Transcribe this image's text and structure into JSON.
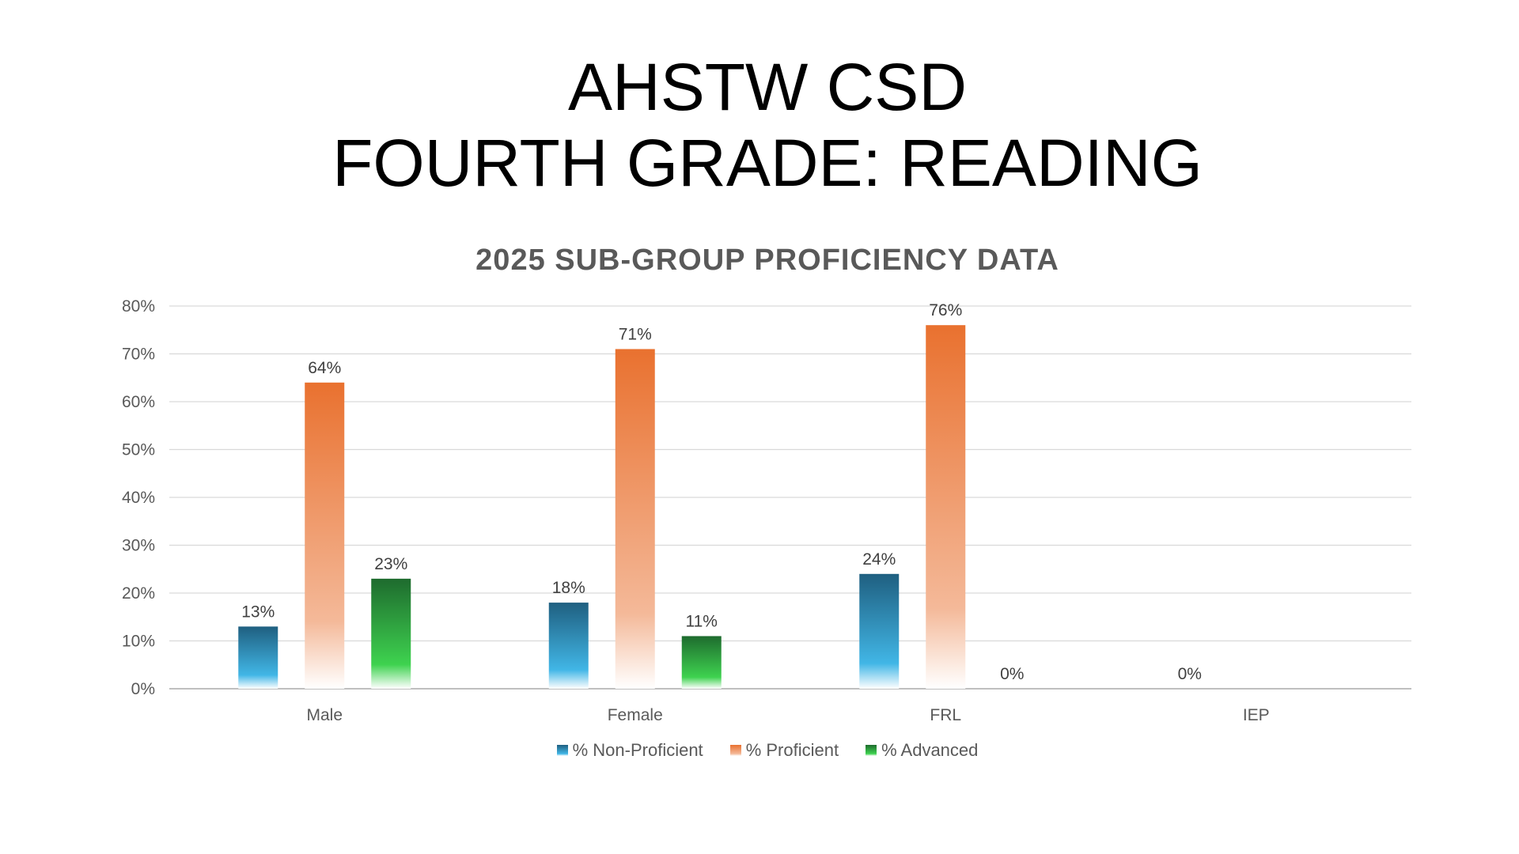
{
  "header": {
    "line1": "AHSTW CSD",
    "line2": "FOURTH GRADE: READING"
  },
  "chart_data": {
    "type": "bar",
    "title": "2025 SUB-GROUP PROFICIENCY DATA",
    "categories": [
      "Male",
      "Female",
      "FRL",
      "IEP"
    ],
    "series": [
      {
        "name": "% Non-Proficient",
        "values": [
          13,
          18,
          24,
          0
        ],
        "color": "#1f5f80",
        "light": "#41b6e6"
      },
      {
        "name": "% Proficient",
        "values": [
          64,
          71,
          76,
          null
        ],
        "color": "#e9712f",
        "light": "#f4b999"
      },
      {
        "name": "% Advanced",
        "values": [
          23,
          11,
          0,
          null
        ],
        "color": "#1e6b2e",
        "light": "#3ed24f"
      }
    ],
    "ylim": [
      0,
      80
    ],
    "yticks": [
      0,
      10,
      20,
      30,
      40,
      50,
      60,
      70,
      80
    ],
    "ytick_format": "%",
    "grid": true,
    "legend": "bottom"
  }
}
